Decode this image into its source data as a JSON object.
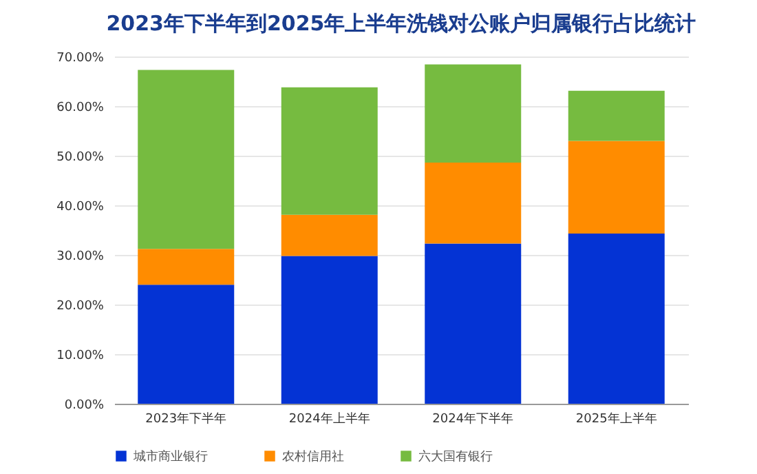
{
  "chart_data": {
    "type": "bar",
    "title": "2023年下半年到2025年上半年洗钱对公账户归属银行占比统计",
    "stacked": true,
    "categories": [
      "2023年下半年",
      "2024年上半年",
      "2024年下半年",
      "2025年上半年"
    ],
    "series": [
      {
        "name": "城市商业银行",
        "color": "#0433d4",
        "values": [
          24.0,
          29.8,
          32.3,
          34.3
        ]
      },
      {
        "name": "农村信用社",
        "color": "#ff8c00",
        "values": [
          7.2,
          8.3,
          16.3,
          18.7
        ]
      },
      {
        "name": "六大国有银行",
        "color": "#76bb40",
        "values": [
          36.1,
          25.7,
          19.8,
          10.1
        ]
      }
    ],
    "ylim": [
      0,
      70
    ],
    "yticks": [
      {
        "value": 0,
        "label": "0.00%"
      },
      {
        "value": 10,
        "label": "10.00%"
      },
      {
        "value": 20,
        "label": "20.00%"
      },
      {
        "value": 30,
        "label": "30.00%"
      },
      {
        "value": 40,
        "label": "40.00%"
      },
      {
        "value": 50,
        "label": "50.00%"
      },
      {
        "value": 60,
        "label": "60.00%"
      },
      {
        "value": 70,
        "label": "70.00%"
      }
    ],
    "grid": "y",
    "legend": "bottom"
  }
}
